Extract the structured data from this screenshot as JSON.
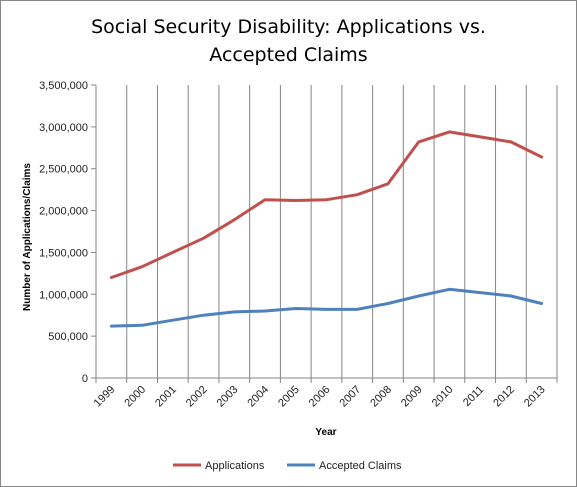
{
  "chart_data": {
    "type": "line",
    "title_line1": "Social Security Disability: Applications vs.",
    "title_line2": "Accepted Claims",
    "xlabel": "Year",
    "ylabel": "Number of Applications/Claims",
    "categories": [
      "1999",
      "2000",
      "2001",
      "2002",
      "2003",
      "2004",
      "2005",
      "2006",
      "2007",
      "2008",
      "2009",
      "2010",
      "2011",
      "2012",
      "2013"
    ],
    "ylim": [
      0,
      3500000
    ],
    "y_ticks": [
      0,
      500000,
      1000000,
      1500000,
      2000000,
      2500000,
      3000000,
      3500000
    ],
    "y_tick_labels": [
      "0",
      "500,000",
      "1,000,000",
      "1,500,000",
      "2,000,000",
      "2,500,000",
      "3,000,000",
      "3,500,000"
    ],
    "grid": "vertical",
    "legend_position": "bottom",
    "series": [
      {
        "name": "Applications",
        "color": "#C0504D",
        "values": [
          1200000,
          1330000,
          1500000,
          1670000,
          1890000,
          2130000,
          2120000,
          2130000,
          2190000,
          2320000,
          2820000,
          2940000,
          2880000,
          2820000,
          2640000
        ]
      },
      {
        "name": "Accepted Claims",
        "color": "#4F81BD",
        "values": [
          620000,
          630000,
          690000,
          750000,
          790000,
          800000,
          830000,
          820000,
          820000,
          890000,
          980000,
          1060000,
          1020000,
          980000,
          890000
        ]
      }
    ]
  }
}
